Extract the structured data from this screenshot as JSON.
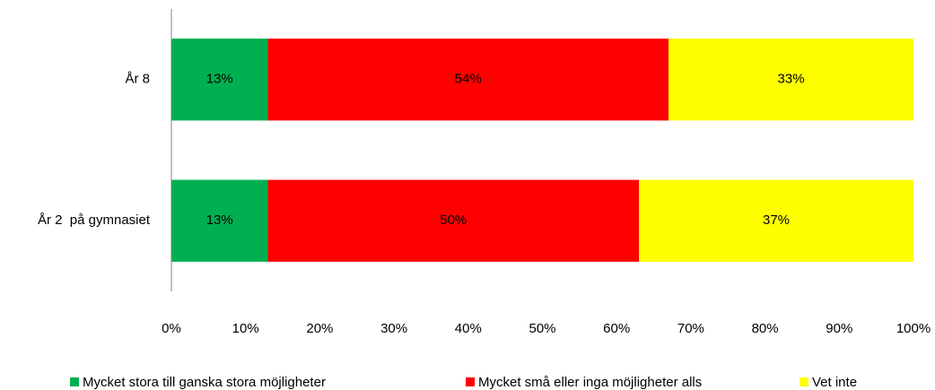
{
  "chart_data": {
    "type": "stacked_bar_horizontal",
    "categories": [
      "År 8",
      "År 2  på gymnasiet"
    ],
    "series": [
      {
        "name": "Mycket stora till ganska stora möjligheter",
        "color": "#00b050",
        "values": [
          13,
          13
        ],
        "value_labels": [
          "13%",
          "13%"
        ]
      },
      {
        "name": "Mycket små eller inga möjligheter alls",
        "color": "#ff0000",
        "values": [
          54,
          50
        ],
        "value_labels": [
          "54%",
          "50%"
        ]
      },
      {
        "name": "Vet inte",
        "color": "#ffff00",
        "values": [
          33,
          37
        ],
        "value_labels": [
          "33%",
          "37%"
        ]
      }
    ],
    "xlim": [
      0,
      100
    ],
    "xticks": [
      {
        "value": 0,
        "label": "0%"
      },
      {
        "value": 10,
        "label": "10%"
      },
      {
        "value": 20,
        "label": "20%"
      },
      {
        "value": 30,
        "label": "30%"
      },
      {
        "value": 40,
        "label": "40%"
      },
      {
        "value": 50,
        "label": "50%"
      },
      {
        "value": 60,
        "label": "60%"
      },
      {
        "value": 70,
        "label": "70%"
      },
      {
        "value": 80,
        "label": "80%"
      },
      {
        "value": 90,
        "label": "90%"
      },
      {
        "value": 100,
        "label": "100%"
      }
    ],
    "grid": false,
    "legend": "bottom"
  }
}
